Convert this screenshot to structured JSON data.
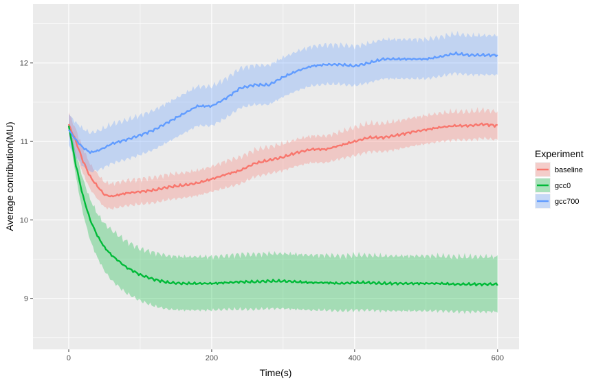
{
  "chart_data": {
    "type": "line",
    "xlabel": "Time(s)",
    "ylabel": "Average contribution(MU)",
    "xlim": [
      -50,
      630
    ],
    "ylim": [
      8.35,
      12.75
    ],
    "xticks": [
      0,
      200,
      400,
      600
    ],
    "yticks": [
      9,
      10,
      11,
      12
    ],
    "grid": true,
    "panel_color": "#ebebeb",
    "legend": {
      "title": "Experiment",
      "placement": "right"
    },
    "series": [
      {
        "name": "baseline",
        "color": "#f8766d",
        "x": [
          0,
          10,
          20,
          30,
          40,
          50,
          60,
          80,
          100,
          120,
          140,
          160,
          180,
          200,
          220,
          240,
          260,
          280,
          300,
          320,
          340,
          360,
          380,
          400,
          420,
          440,
          460,
          480,
          500,
          520,
          540,
          560,
          580,
          600
        ],
        "y": [
          11.22,
          11.0,
          10.75,
          10.55,
          10.43,
          10.32,
          10.3,
          10.34,
          10.36,
          10.38,
          10.42,
          10.44,
          10.47,
          10.52,
          10.58,
          10.63,
          10.72,
          10.76,
          10.8,
          10.86,
          10.9,
          10.9,
          10.95,
          11.0,
          11.05,
          11.05,
          11.08,
          11.12,
          11.15,
          11.18,
          11.2,
          11.2,
          11.22,
          11.2
        ],
        "band": [
          0.15,
          0.15,
          0.16,
          0.16,
          0.16,
          0.16,
          0.16,
          0.16,
          0.16,
          0.16,
          0.16,
          0.16,
          0.16,
          0.16,
          0.17,
          0.17,
          0.17,
          0.17,
          0.17,
          0.17,
          0.17,
          0.17,
          0.17,
          0.18,
          0.18,
          0.18,
          0.18,
          0.18,
          0.18,
          0.18,
          0.18,
          0.18,
          0.18,
          0.18
        ]
      },
      {
        "name": "gcc0",
        "color": "#00ba38",
        "x": [
          0,
          10,
          20,
          30,
          40,
          50,
          60,
          80,
          100,
          120,
          140,
          160,
          180,
          200,
          220,
          240,
          260,
          280,
          300,
          320,
          340,
          360,
          380,
          400,
          420,
          440,
          460,
          480,
          500,
          520,
          540,
          560,
          580,
          600
        ],
        "y": [
          11.2,
          10.7,
          10.3,
          10.0,
          9.8,
          9.65,
          9.55,
          9.4,
          9.3,
          9.24,
          9.2,
          9.19,
          9.19,
          9.19,
          9.2,
          9.21,
          9.21,
          9.22,
          9.22,
          9.21,
          9.2,
          9.2,
          9.19,
          9.2,
          9.2,
          9.19,
          9.19,
          9.19,
          9.19,
          9.19,
          9.18,
          9.18,
          9.18,
          9.18
        ],
        "band": [
          0.05,
          0.15,
          0.22,
          0.26,
          0.28,
          0.3,
          0.32,
          0.33,
          0.33,
          0.34,
          0.34,
          0.34,
          0.34,
          0.34,
          0.34,
          0.35,
          0.35,
          0.35,
          0.35,
          0.35,
          0.35,
          0.35,
          0.35,
          0.35,
          0.35,
          0.35,
          0.35,
          0.35,
          0.35,
          0.35,
          0.35,
          0.35,
          0.35,
          0.35
        ]
      },
      {
        "name": "gcc700",
        "color": "#619cff",
        "x": [
          0,
          10,
          20,
          30,
          40,
          50,
          60,
          80,
          100,
          120,
          140,
          160,
          180,
          200,
          220,
          240,
          260,
          280,
          300,
          320,
          340,
          360,
          380,
          400,
          420,
          440,
          460,
          480,
          500,
          520,
          540,
          560,
          580,
          600
        ],
        "y": [
          11.15,
          11.02,
          10.92,
          10.86,
          10.88,
          10.92,
          10.97,
          11.02,
          11.08,
          11.15,
          11.25,
          11.35,
          11.45,
          11.45,
          11.55,
          11.68,
          11.72,
          11.72,
          11.82,
          11.9,
          11.96,
          11.98,
          11.98,
          11.96,
          12.0,
          12.05,
          12.05,
          12.05,
          12.05,
          12.08,
          12.12,
          12.1,
          12.1,
          12.1
        ],
        "band": [
          0.2,
          0.22,
          0.24,
          0.25,
          0.25,
          0.25,
          0.25,
          0.25,
          0.25,
          0.25,
          0.25,
          0.25,
          0.25,
          0.25,
          0.25,
          0.25,
          0.25,
          0.25,
          0.25,
          0.25,
          0.25,
          0.25,
          0.25,
          0.25,
          0.25,
          0.25,
          0.25,
          0.25,
          0.25,
          0.25,
          0.25,
          0.25,
          0.25,
          0.25
        ]
      }
    ]
  }
}
